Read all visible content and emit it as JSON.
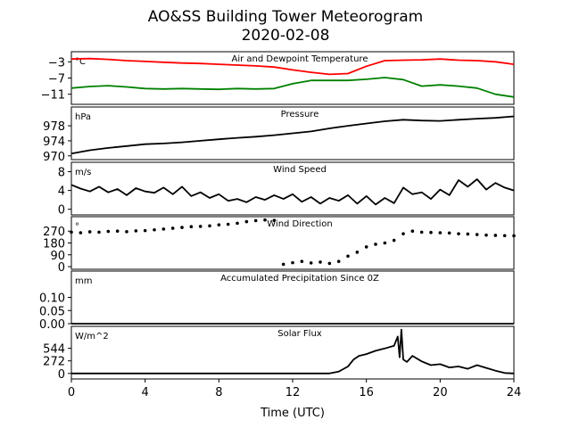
{
  "title": "AO&SS Building Tower Meteorogram",
  "subtitle": "2020-02-08",
  "xlabel": "Time (UTC)",
  "chart_data": [
    {
      "type": "line",
      "id": "temp",
      "title": "Air and Dewpoint Temperature",
      "ylabel": "°C",
      "ylim": [
        -13.5,
        -0.5
      ],
      "yticks": [
        -3,
        -7,
        -11
      ],
      "ytick_labels": [
        "−3",
        "−7",
        "−11"
      ],
      "series": [
        {
          "color": "#ff0000",
          "x": [
            0,
            1,
            2,
            3,
            4,
            5,
            6,
            7,
            8,
            9,
            10,
            11,
            12,
            13,
            14,
            15,
            16,
            17,
            18,
            19,
            20,
            21,
            22,
            23,
            24
          ],
          "values": [
            -2.3,
            -2.2,
            -2.4,
            -2.7,
            -2.9,
            -3.1,
            -3.3,
            -3.4,
            -3.6,
            -3.8,
            -4.0,
            -4.3,
            -5.0,
            -5.6,
            -6.1,
            -5.9,
            -4.1,
            -2.7,
            -2.6,
            -2.5,
            -2.3,
            -2.6,
            -2.7,
            -3.0,
            -3.6
          ]
        },
        {
          "color": "#008000",
          "x": [
            0,
            1,
            2,
            3,
            4,
            5,
            6,
            7,
            8,
            9,
            10,
            11,
            12,
            13,
            14,
            15,
            16,
            17,
            18,
            19,
            20,
            21,
            22,
            23,
            24
          ],
          "values": [
            -9.5,
            -9.1,
            -8.9,
            -9.2,
            -9.6,
            -9.7,
            -9.6,
            -9.7,
            -9.8,
            -9.6,
            -9.7,
            -9.6,
            -8.4,
            -7.6,
            -7.6,
            -7.6,
            -7.3,
            -6.9,
            -7.4,
            -9.0,
            -8.7,
            -9.0,
            -9.5,
            -11.0,
            -11.7
          ]
        }
      ]
    },
    {
      "type": "line",
      "id": "pressure",
      "title": "Pressure",
      "ylabel": "hPa",
      "ylim": [
        969,
        983
      ],
      "yticks": [
        978,
        974,
        970
      ],
      "ytick_labels": [
        "978",
        "974",
        "970"
      ],
      "series": [
        {
          "color": "#000000",
          "x": [
            0,
            1,
            2,
            3,
            4,
            5,
            6,
            7,
            8,
            9,
            10,
            11,
            12,
            13,
            14,
            15,
            16,
            17,
            18,
            19,
            20,
            21,
            22,
            23,
            24
          ],
          "values": [
            970.6,
            971.5,
            972.1,
            972.6,
            973.1,
            973.3,
            973.6,
            974.0,
            974.4,
            974.8,
            975.1,
            975.5,
            976.0,
            976.5,
            977.3,
            978.0,
            978.6,
            979.2,
            979.6,
            979.4,
            979.3,
            979.6,
            979.9,
            980.1,
            980.5
          ]
        }
      ]
    },
    {
      "type": "line",
      "id": "wind-speed",
      "title": "Wind Speed",
      "ylabel": "m/s",
      "ylim": [
        -1.2,
        10
      ],
      "yticks": [
        8,
        4,
        0
      ],
      "ytick_labels": [
        "8",
        "4",
        "0"
      ],
      "series": [
        {
          "color": "#000000",
          "x": [
            0,
            0.5,
            1,
            1.5,
            2,
            2.5,
            3,
            3.5,
            4,
            4.5,
            5,
            5.5,
            6,
            6.5,
            7,
            7.5,
            8,
            8.5,
            9,
            9.5,
            10,
            10.5,
            11,
            11.5,
            12,
            12.5,
            13,
            13.5,
            14,
            14.5,
            15,
            15.5,
            16,
            16.5,
            17,
            17.5,
            18,
            18.5,
            19,
            19.5,
            20,
            20.5,
            21,
            21.5,
            22,
            22.5,
            23,
            23.5,
            24
          ],
          "values": [
            5.2,
            4.4,
            3.8,
            4.8,
            3.6,
            4.3,
            3.0,
            4.5,
            3.8,
            3.5,
            4.6,
            3.2,
            4.8,
            2.8,
            3.6,
            2.4,
            3.2,
            1.8,
            2.2,
            1.5,
            2.6,
            2.0,
            3.0,
            2.2,
            3.2,
            1.6,
            2.6,
            1.2,
            2.4,
            1.8,
            3.0,
            1.2,
            2.8,
            1.0,
            2.4,
            1.3,
            4.6,
            3.2,
            3.6,
            2.2,
            4.2,
            3.0,
            6.2,
            4.8,
            6.4,
            4.2,
            5.6,
            4.6,
            4.0
          ]
        }
      ]
    },
    {
      "type": "scatter",
      "id": "wind-direction",
      "title": "Wind Direction",
      "ylabel": "°",
      "ylim": [
        -20,
        380
      ],
      "yticks": [
        270,
        180,
        90,
        0
      ],
      "ytick_labels": [
        "270",
        "180",
        "90",
        "0"
      ],
      "series": [
        {
          "color": "#000000",
          "x": [
            0,
            0.5,
            1,
            1.5,
            2,
            2.5,
            3,
            3.5,
            4,
            4.5,
            5,
            5.5,
            6,
            6.5,
            7,
            7.5,
            8,
            8.5,
            9,
            9.5,
            10,
            10.5,
            11,
            11.5,
            12,
            12.5,
            13,
            13.5,
            14,
            14.5,
            15,
            15.5,
            16,
            16.5,
            17,
            17.5,
            18,
            18.5,
            19,
            19.5,
            20,
            20.5,
            21,
            21.5,
            22,
            22.5,
            23,
            23.5,
            24
          ],
          "values": [
            262,
            258,
            265,
            262,
            268,
            270,
            266,
            272,
            274,
            280,
            286,
            292,
            298,
            304,
            306,
            310,
            318,
            322,
            330,
            342,
            350,
            355,
            352,
            18,
            30,
            40,
            28,
            35,
            25,
            40,
            80,
            110,
            150,
            170,
            180,
            200,
            250,
            270,
            262,
            260,
            258,
            256,
            250,
            248,
            244,
            240,
            238,
            236,
            235
          ]
        }
      ]
    },
    {
      "type": "line",
      "id": "precipitation",
      "title": "Accumulated Precipitation Since 0Z",
      "ylabel": "mm",
      "ylim": [
        0,
        0.2
      ],
      "yticks": [
        0.1,
        0.05,
        0.0
      ],
      "ytick_labels": [
        "0.10",
        "0.05",
        "0.00"
      ],
      "series": [
        {
          "color": "#000000",
          "x": [
            0,
            24
          ],
          "values": [
            0,
            0
          ]
        }
      ]
    },
    {
      "type": "line",
      "id": "solar-flux",
      "title": "Solar Flux",
      "ylabel": "W/m^2",
      "ylim": [
        -120,
        1020
      ],
      "yticks": [
        544,
        272,
        0
      ],
      "ytick_labels": [
        "544",
        "272",
        "0"
      ],
      "series": [
        {
          "color": "#000000",
          "x": [
            0,
            14,
            14.5,
            15,
            15.3,
            15.6,
            16,
            16.5,
            17,
            17.5,
            17.7,
            17.8,
            17.9,
            18,
            18.2,
            18.5,
            19,
            19.5,
            20,
            20.5,
            21,
            21.5,
            22,
            22.5,
            23,
            23.5,
            24
          ],
          "values": [
            0,
            0,
            40,
            150,
            300,
            380,
            420,
            490,
            540,
            600,
            800,
            350,
            950,
            300,
            250,
            380,
            260,
            180,
            200,
            130,
            150,
            100,
            180,
            120,
            60,
            10,
            0
          ]
        }
      ]
    }
  ],
  "xaxis": {
    "xlim": [
      0,
      24
    ],
    "ticks": [
      0,
      4,
      8,
      12,
      16,
      20,
      24
    ],
    "tick_labels": [
      "0",
      "4",
      "8",
      "12",
      "16",
      "20",
      "24"
    ]
  }
}
